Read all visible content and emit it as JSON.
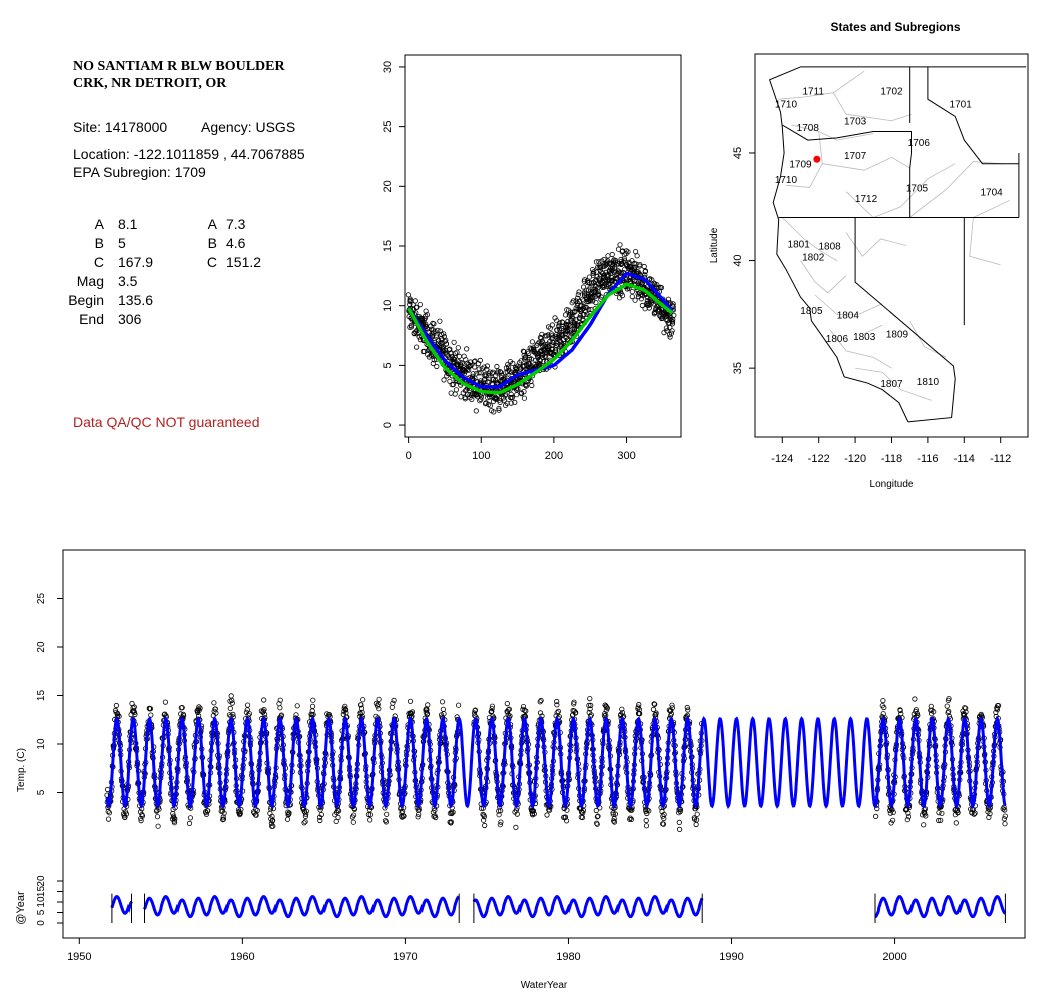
{
  "site": {
    "name_line1": "NO SANTIAM R BLW BOULDER",
    "name_line2": "CRK, NR DETROIT, OR",
    "site_label": "Site: 14178000",
    "agency_label": "Agency: USGS",
    "location_label": "Location: -122.1011859 , 44.7067885",
    "subregion_label": "EPA Subregion: 1709",
    "qa_note": "Data QA/QC NOT guaranteed"
  },
  "params_left": [
    {
      "label": "A",
      "value": "8.1"
    },
    {
      "label": "B",
      "value": "5"
    },
    {
      "label": "C",
      "value": "167.9"
    },
    {
      "label": "Mag",
      "value": "3.5"
    },
    {
      "label": "Begin",
      "value": "135.6"
    },
    {
      "label": "End",
      "value": "306"
    }
  ],
  "params_right": [
    {
      "label": "A",
      "value": "7.3"
    },
    {
      "label": "B",
      "value": "4.6"
    },
    {
      "label": "C",
      "value": "151.2"
    }
  ],
  "colors": {
    "points": "#000000",
    "fit_blue": "#0000ff",
    "fit_green": "#00cc00",
    "qa_note": "#b22222",
    "state_border": "#000000",
    "subregion_border": "#bbbbbb",
    "site_marker": "#ff0000"
  },
  "chart_data": [
    {
      "type": "scatter",
      "name": "seasonal-plot",
      "x_ticks": [
        0,
        100,
        200,
        300
      ],
      "y_ticks": [
        0,
        5,
        10,
        15,
        20,
        25,
        30
      ],
      "xlim": [
        -5,
        375
      ],
      "ylim": [
        -1,
        31
      ],
      "grid": false,
      "series": [
        {
          "kind": "points",
          "color": "#000000",
          "x": [
            0,
            20,
            40,
            60,
            80,
            100,
            120,
            140,
            160,
            180,
            200,
            220,
            240,
            260,
            280,
            300,
            320,
            340,
            360
          ],
          "y": [
            9.5,
            8.0,
            6.5,
            5.0,
            4.0,
            3.2,
            3.0,
            3.5,
            4.5,
            5.5,
            6.5,
            8.0,
            10.0,
            12.0,
            13.0,
            12.8,
            12.0,
            10.5,
            9.0
          ]
        },
        {
          "kind": "line",
          "color": "#0000ff",
          "x": [
            0,
            25,
            50,
            75,
            100,
            125,
            150,
            175,
            200,
            225,
            250,
            275,
            300,
            325,
            350,
            365
          ],
          "y": [
            9.8,
            7.5,
            5.4,
            4.0,
            3.2,
            3.2,
            4.2,
            4.6,
            5.0,
            6.3,
            8.4,
            11.0,
            12.7,
            12.2,
            10.5,
            9.4
          ]
        },
        {
          "kind": "line",
          "color": "#00cc00",
          "x": [
            0,
            25,
            50,
            75,
            100,
            125,
            150,
            175,
            200,
            225,
            250,
            275,
            300,
            325,
            350,
            365
          ],
          "y": [
            9.8,
            7.0,
            4.8,
            3.5,
            2.8,
            2.7,
            3.4,
            4.4,
            5.5,
            7.1,
            9.1,
            10.9,
            11.8,
            11.3,
            10.0,
            9.3
          ]
        }
      ]
    },
    {
      "type": "map",
      "name": "states-and-subregions-map",
      "title": "States and Subregions",
      "xlabel": "Longitude",
      "ylabel": "Latitude",
      "x_ticks": [
        -124,
        -122,
        -120,
        -118,
        -116,
        -114,
        -112
      ],
      "y_ticks": [
        35,
        40,
        45
      ],
      "xlim": [
        -125.5,
        -110.5
      ],
      "ylim": [
        31.8,
        49.6
      ],
      "site_marker": {
        "lon": -122.1,
        "lat": 44.71,
        "color": "#ff0000"
      },
      "subregion_labels": [
        {
          "text": "1702",
          "lon": -118.0,
          "lat": 47.9
        },
        {
          "text": "1701",
          "lon": -114.2,
          "lat": 47.3
        },
        {
          "text": "1711",
          "lon": -122.3,
          "lat": 47.9
        },
        {
          "text": "1710",
          "lon": -123.8,
          "lat": 47.3
        },
        {
          "text": "1703",
          "lon": -120.0,
          "lat": 46.5
        },
        {
          "text": "1708",
          "lon": -122.6,
          "lat": 46.2
        },
        {
          "text": "1706",
          "lon": -116.5,
          "lat": 45.5
        },
        {
          "text": "1707",
          "lon": -120.0,
          "lat": 44.9
        },
        {
          "text": "1709",
          "lon": -123.0,
          "lat": 44.5
        },
        {
          "text": "1710",
          "lon": -123.8,
          "lat": 43.8
        },
        {
          "text": "1705",
          "lon": -116.6,
          "lat": 43.4
        },
        {
          "text": "1704",
          "lon": -112.5,
          "lat": 43.2
        },
        {
          "text": "1712",
          "lon": -119.4,
          "lat": 42.9
        },
        {
          "text": "1801",
          "lon": -123.1,
          "lat": 40.8
        },
        {
          "text": "1808",
          "lon": -121.4,
          "lat": 40.7
        },
        {
          "text": "1802",
          "lon": -122.3,
          "lat": 40.2
        },
        {
          "text": "1805",
          "lon": -122.4,
          "lat": 37.7
        },
        {
          "text": "1804",
          "lon": -120.4,
          "lat": 37.5
        },
        {
          "text": "1806",
          "lon": -121.0,
          "lat": 36.4
        },
        {
          "text": "1803",
          "lon": -119.5,
          "lat": 36.5
        },
        {
          "text": "1809",
          "lon": -117.7,
          "lat": 36.6
        },
        {
          "text": "1810",
          "lon": -116.0,
          "lat": 34.4
        },
        {
          "text": "1807",
          "lon": -118.0,
          "lat": 34.3
        }
      ]
    },
    {
      "type": "line",
      "name": "timeseries-plot",
      "xlabel": "WaterYear",
      "ylabel": "Temp. (C)",
      "ylabel2": "@Year",
      "x_ticks": [
        1950,
        1960,
        1970,
        1980,
        1990,
        2000
      ],
      "y_ticks": [
        5,
        10,
        15,
        20,
        25
      ],
      "y2_ticks": [
        0,
        5,
        10,
        15,
        20
      ],
      "xlim": [
        1949.0,
        2008.0
      ],
      "ylim": [
        -10.0,
        30.0
      ],
      "observed_periods": [
        [
          1951.7,
          1973.3
        ],
        [
          1974.2,
          1988.2
        ],
        [
          1998.8,
          2006.8
        ]
      ],
      "fit_period": [
        1951.7,
        2006.8
      ],
      "fit_mean": 8.1,
      "fit_amplitude": 4.5,
      "annual_panel_segments": [
        [
          1952.0,
          1953.2
        ],
        [
          1954.0,
          1973.3
        ],
        [
          1974.2,
          1988.2
        ],
        [
          1998.8,
          2006.8
        ]
      ],
      "annual_panel_mean": 7.0,
      "annual_panel_amplitude": 4.0
    }
  ]
}
